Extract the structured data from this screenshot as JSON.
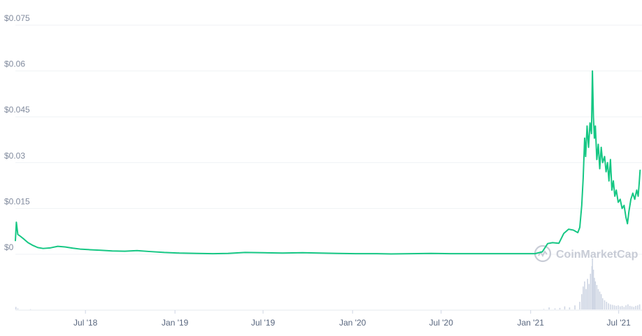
{
  "chart_data": {
    "type": "line",
    "y_ticks": [
      {
        "value": 0,
        "label": "$0"
      },
      {
        "value": 0.015,
        "label": "$0.015"
      },
      {
        "value": 0.03,
        "label": "$0.03"
      },
      {
        "value": 0.045,
        "label": "$0.045"
      },
      {
        "value": 0.06,
        "label": "$0.06"
      },
      {
        "value": 0.075,
        "label": "$0.075"
      }
    ],
    "x_ticks": [
      {
        "date": "2018-07-01",
        "label": "Jul '18"
      },
      {
        "date": "2019-01-01",
        "label": "Jan '19"
      },
      {
        "date": "2019-07-01",
        "label": "Jul '19"
      },
      {
        "date": "2020-01-01",
        "label": "Jan '20"
      },
      {
        "date": "2020-07-01",
        "label": "Jul '20"
      },
      {
        "date": "2021-01-01",
        "label": "Jan '21"
      },
      {
        "date": "2021-07-01",
        "label": "Jul '21"
      }
    ],
    "ylim": [
      0,
      0.075
    ],
    "xlim": [
      "2018-02-07",
      "2021-08-15"
    ],
    "grid": true,
    "series": [
      {
        "color": "#16c784",
        "points": [
          [
            "2018-02-07",
            0.0045
          ],
          [
            "2018-02-09",
            0.0105
          ],
          [
            "2018-02-12",
            0.0065
          ],
          [
            "2018-02-18",
            0.0058
          ],
          [
            "2018-02-25",
            0.0049
          ],
          [
            "2018-03-05",
            0.0038
          ],
          [
            "2018-03-15",
            0.0029
          ],
          [
            "2018-03-25",
            0.0022
          ],
          [
            "2018-04-05",
            0.0019
          ],
          [
            "2018-04-20",
            0.0021
          ],
          [
            "2018-05-05",
            0.0026
          ],
          [
            "2018-05-20",
            0.0024
          ],
          [
            "2018-06-05",
            0.002
          ],
          [
            "2018-06-20",
            0.0017
          ],
          [
            "2018-07-10",
            0.0015
          ],
          [
            "2018-08-01",
            0.0013
          ],
          [
            "2018-08-25",
            0.0011
          ],
          [
            "2018-09-20",
            0.001
          ],
          [
            "2018-10-15",
            0.0012
          ],
          [
            "2018-11-10",
            0.0009
          ],
          [
            "2018-12-10",
            0.0006
          ],
          [
            "2019-01-10",
            0.0004
          ],
          [
            "2019-02-15",
            0.0003
          ],
          [
            "2019-03-20",
            0.0002
          ],
          [
            "2019-04-20",
            0.0003
          ],
          [
            "2019-05-25",
            0.0006
          ],
          [
            "2019-07-01",
            0.0005
          ],
          [
            "2019-08-10",
            0.0004
          ],
          [
            "2019-09-20",
            0.0005
          ],
          [
            "2019-10-25",
            0.0004
          ],
          [
            "2019-12-01",
            0.0003
          ],
          [
            "2020-01-10",
            0.0002
          ],
          [
            "2020-02-20",
            0.0002
          ],
          [
            "2020-03-20",
            0.0001
          ],
          [
            "2020-05-01",
            0.0002
          ],
          [
            "2020-06-10",
            0.0003
          ],
          [
            "2020-07-20",
            0.0002
          ],
          [
            "2020-09-01",
            0.0002
          ],
          [
            "2020-10-20",
            0.0002
          ],
          [
            "2020-12-01",
            0.0002
          ],
          [
            "2021-01-10",
            0.0002
          ],
          [
            "2021-01-25",
            0.0008
          ],
          [
            "2021-02-05",
            0.0035
          ],
          [
            "2021-02-15",
            0.0038
          ],
          [
            "2021-02-28",
            0.0036
          ],
          [
            "2021-03-10",
            0.0068
          ],
          [
            "2021-03-20",
            0.0082
          ],
          [
            "2021-03-30",
            0.0079
          ],
          [
            "2021-04-08",
            0.0071
          ],
          [
            "2021-04-12",
            0.0088
          ],
          [
            "2021-04-16",
            0.016
          ],
          [
            "2021-04-19",
            0.025
          ],
          [
            "2021-04-22",
            0.038
          ],
          [
            "2021-04-24",
            0.032
          ],
          [
            "2021-04-27",
            0.042
          ],
          [
            "2021-04-30",
            0.035
          ],
          [
            "2021-05-03",
            0.043
          ],
          [
            "2021-05-06",
            0.0395
          ],
          [
            "2021-05-08",
            0.06
          ],
          [
            "2021-05-10",
            0.045
          ],
          [
            "2021-05-12",
            0.038
          ],
          [
            "2021-05-14",
            0.042
          ],
          [
            "2021-05-17",
            0.031
          ],
          [
            "2021-05-20",
            0.036
          ],
          [
            "2021-05-23",
            0.028
          ],
          [
            "2021-05-26",
            0.035
          ],
          [
            "2021-05-29",
            0.03
          ],
          [
            "2021-06-02",
            0.032
          ],
          [
            "2021-06-05",
            0.027
          ],
          [
            "2021-06-08",
            0.03
          ],
          [
            "2021-06-11",
            0.024
          ],
          [
            "2021-06-14",
            0.031
          ],
          [
            "2021-06-17",
            0.021
          ],
          [
            "2021-06-20",
            0.024
          ],
          [
            "2021-06-23",
            0.019
          ],
          [
            "2021-06-26",
            0.021
          ],
          [
            "2021-06-30",
            0.017
          ],
          [
            "2021-07-04",
            0.018
          ],
          [
            "2021-07-08",
            0.015
          ],
          [
            "2021-07-12",
            0.016
          ],
          [
            "2021-07-16",
            0.012
          ],
          [
            "2021-07-19",
            0.01
          ],
          [
            "2021-07-22",
            0.014
          ],
          [
            "2021-07-26",
            0.018
          ],
          [
            "2021-07-30",
            0.02
          ],
          [
            "2021-08-03",
            0.018
          ],
          [
            "2021-08-07",
            0.021
          ],
          [
            "2021-08-10",
            0.019
          ],
          [
            "2021-08-12",
            0.023
          ],
          [
            "2021-08-14",
            0.0275
          ]
        ]
      }
    ],
    "volume": {
      "color": "#cfd6e4",
      "bars": [
        [
          "2018-02-08",
          0.05
        ],
        [
          "2018-02-12",
          0.02
        ],
        [
          "2018-03-10",
          0.005
        ],
        [
          "2021-01-28",
          0.01
        ],
        [
          "2021-02-08",
          0.04
        ],
        [
          "2021-02-20",
          0.02
        ],
        [
          "2021-03-02",
          0.03
        ],
        [
          "2021-03-12",
          0.06
        ],
        [
          "2021-03-22",
          0.04
        ],
        [
          "2021-04-02",
          0.08
        ],
        [
          "2021-04-12",
          0.15
        ],
        [
          "2021-04-16",
          0.3
        ],
        [
          "2021-04-19",
          0.45
        ],
        [
          "2021-04-22",
          0.55
        ],
        [
          "2021-04-25",
          0.4
        ],
        [
          "2021-04-28",
          0.6
        ],
        [
          "2021-05-01",
          0.5
        ],
        [
          "2021-05-04",
          0.7
        ],
        [
          "2021-05-07",
          0.85
        ],
        [
          "2021-05-08",
          1.0
        ],
        [
          "2021-05-10",
          0.78
        ],
        [
          "2021-05-12",
          0.62
        ],
        [
          "2021-05-14",
          0.55
        ],
        [
          "2021-05-17",
          0.48
        ],
        [
          "2021-05-20",
          0.4
        ],
        [
          "2021-05-23",
          0.35
        ],
        [
          "2021-05-26",
          0.3
        ],
        [
          "2021-05-29",
          0.22
        ],
        [
          "2021-06-02",
          0.18
        ],
        [
          "2021-06-06",
          0.15
        ],
        [
          "2021-06-10",
          0.12
        ],
        [
          "2021-06-14",
          0.1
        ],
        [
          "2021-06-18",
          0.09
        ],
        [
          "2021-06-22",
          0.08
        ],
        [
          "2021-06-26",
          0.07
        ],
        [
          "2021-06-30",
          0.08
        ],
        [
          "2021-07-04",
          0.06
        ],
        [
          "2021-07-08",
          0.07
        ],
        [
          "2021-07-12",
          0.05
        ],
        [
          "2021-07-16",
          0.08
        ],
        [
          "2021-07-20",
          0.1
        ],
        [
          "2021-07-24",
          0.07
        ],
        [
          "2021-07-28",
          0.06
        ],
        [
          "2021-08-01",
          0.05
        ],
        [
          "2021-08-05",
          0.07
        ],
        [
          "2021-08-09",
          0.08
        ],
        [
          "2021-08-13",
          0.1
        ]
      ]
    }
  },
  "watermark": {
    "text": "CoinMarketCap",
    "color": "#c8ccd6"
  }
}
